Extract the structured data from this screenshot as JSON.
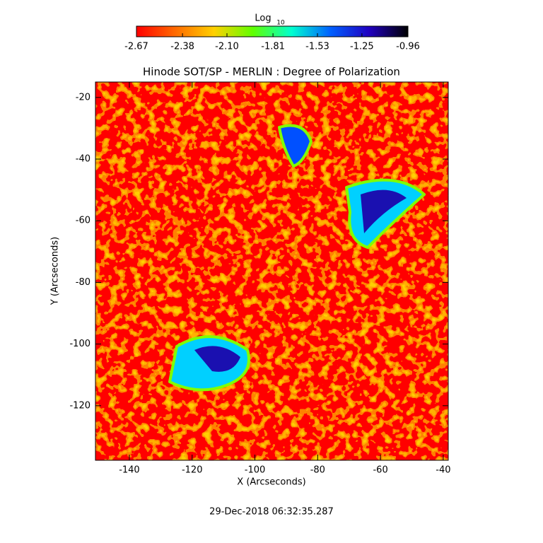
{
  "chart_data": {
    "type": "image",
    "title": "Hinode SOT/SP - MERLIN : Degree of Polarization",
    "xlabel": "X (Arcseconds)",
    "ylabel": "Y (Arcseconds)",
    "xlim": [
      -150.8,
      -38.4
    ],
    "ylim": [
      -137.7,
      -15
    ],
    "xticks": [
      -140,
      -120,
      -100,
      -80,
      -60,
      -40
    ],
    "yticks": [
      -120,
      -100,
      -80,
      -60,
      -40,
      -20
    ],
    "colorbar_label": "Log",
    "colorbar_label_subscript": "10",
    "colorbar_lim": [
      -2.67,
      -0.96
    ],
    "colorbar_ticks": [
      -2.67,
      -2.38,
      {
        "value": -2.1,
        "label": "-2.10"
      },
      -1.81,
      -1.53,
      -1.25,
      -0.96
    ],
    "colormap": [
      "#ff0000",
      "#ff6a00",
      "#ffd000",
      "#60ff00",
      "#00ffd0",
      "#0060ff",
      "#2000c0",
      "#000000"
    ],
    "date": "29-Dec-2018 06:32:35.287"
  }
}
